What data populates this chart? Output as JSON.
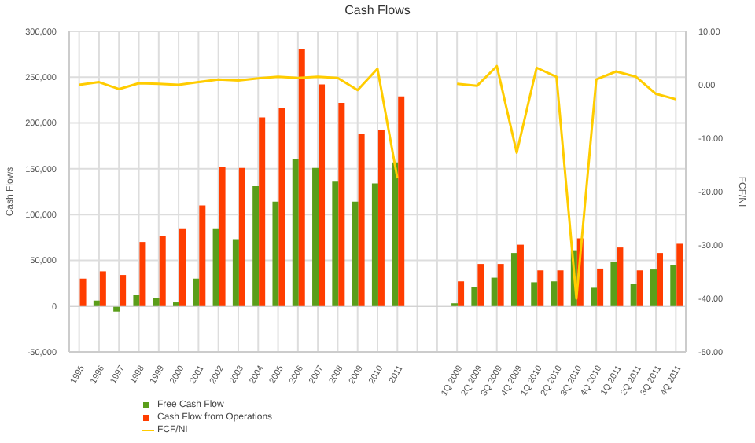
{
  "chart_data": {
    "type": "bar",
    "title": "Cash Flows",
    "ylabel": "Cash Flows",
    "y2label": "FCF/NI",
    "categories": [
      "1995",
      "1996",
      "1997",
      "1998",
      "1999",
      "2000",
      "2001",
      "2002",
      "2003",
      "2004",
      "2005",
      "2006",
      "2007",
      "2008",
      "2009",
      "2010",
      "2011",
      null,
      null,
      "1Q 2009",
      "2Q 2009",
      "3Q 2009",
      "4Q 2009",
      "1Q 2010",
      "2Q 2010",
      "3Q 2010",
      "4Q 2010",
      "1Q 2011",
      "2Q 2011",
      "3Q 2011",
      "4Q 2011"
    ],
    "series": [
      {
        "name": "Free Cash Flow",
        "color": "#5a9e1a",
        "values": [
          0,
          6000,
          -6000,
          12000,
          9000,
          4000,
          30000,
          85000,
          73000,
          131000,
          114000,
          161000,
          151000,
          136000,
          114000,
          134000,
          157000,
          null,
          null,
          3000,
          21000,
          31000,
          58000,
          26000,
          27000,
          61000,
          20000,
          48000,
          24000,
          40000,
          45000
        ]
      },
      {
        "name": "Cash Flow from Operations",
        "color": "#ff3d00",
        "values": [
          30000,
          38000,
          34000,
          70000,
          76000,
          85000,
          110000,
          152000,
          151000,
          206000,
          216000,
          281000,
          242000,
          222000,
          188000,
          192000,
          229000,
          null,
          null,
          27000,
          46000,
          46000,
          67000,
          39000,
          39000,
          74000,
          41000,
          64000,
          39000,
          58000,
          68000
        ]
      },
      {
        "name": "FCF/NI",
        "type": "line",
        "axis": "y2",
        "color": "#ffcc00",
        "values": [
          0,
          0.5,
          -0.8,
          0.3,
          0.2,
          0,
          0.5,
          1.0,
          0.8,
          1.2,
          1.5,
          1.3,
          1.5,
          1.3,
          -1.0,
          3.0,
          -17.5,
          null,
          null,
          0.2,
          -0.2,
          3.5,
          -12.7,
          3.2,
          1.5,
          -40,
          1.0,
          2.5,
          1.5,
          -1.7,
          -2.7
        ]
      }
    ],
    "ylim": [
      -50000,
      300000
    ],
    "yticks": [
      {
        "value": -50000,
        "label": "-50,000"
      },
      {
        "value": 0,
        "label": "0"
      },
      {
        "value": 50000,
        "label": "50,000"
      },
      {
        "value": 100000,
        "label": "100,000"
      },
      {
        "value": 150000,
        "label": "150,000"
      },
      {
        "value": 200000,
        "label": "200,000"
      },
      {
        "value": 250000,
        "label": "250,000"
      },
      {
        "value": 300000,
        "label": "300,000"
      }
    ],
    "y2lim": [
      -50,
      10
    ],
    "y2ticks": [
      {
        "value": -50,
        "label": "-50.00"
      },
      {
        "value": -40,
        "label": "-40.00"
      },
      {
        "value": -30,
        "label": "-30.00"
      },
      {
        "value": -20,
        "label": "-20.00"
      },
      {
        "value": -10,
        "label": "-10.00"
      },
      {
        "value": 0,
        "label": "0.00"
      },
      {
        "value": 10,
        "label": "10.00"
      }
    ],
    "grid": true,
    "legend": "bottom left"
  }
}
